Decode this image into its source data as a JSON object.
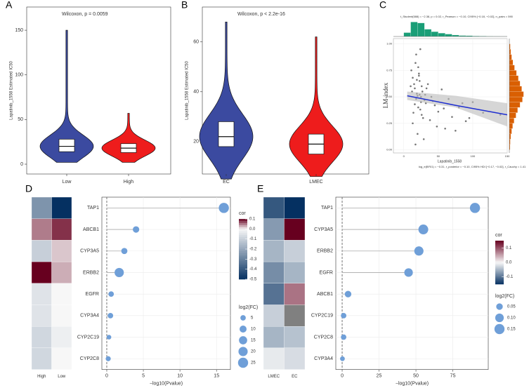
{
  "chart_data": [
    {
      "type": "violin",
      "panel": "A",
      "title": "Wilcoxon, p = 0.0059",
      "ylabel": "Lapatinib_1558 Estimated IC50",
      "categories": [
        "Low",
        "High"
      ],
      "colors": [
        "#3b4aa0",
        "#ee1c1c"
      ],
      "min": [
        2,
        2
      ],
      "q1": [
        14,
        13
      ],
      "median": [
        20,
        18
      ],
      "q3": [
        28,
        23
      ],
      "max": [
        150,
        57
      ],
      "ylim": [
        -11,
        176
      ],
      "yticks": [
        0,
        50,
        100,
        150
      ]
    },
    {
      "type": "violin",
      "panel": "B",
      "title": "Wilcoxon, p < 2.2e-16",
      "ylabel": "Lapatinib_1558 Estimated IC50",
      "categories": [
        "EC",
        "LMEC"
      ],
      "colors": [
        "#3b4aa0",
        "#ee1c1c"
      ],
      "min": [
        5,
        6
      ],
      "q1": [
        18,
        15
      ],
      "median": [
        22,
        19
      ],
      "q3": [
        28,
        23
      ],
      "max": [
        68,
        62
      ],
      "ylim": [
        7,
        74
      ],
      "yticks": [
        20,
        40,
        60
      ]
    },
    {
      "type": "scatter",
      "panel": "C",
      "annotation_top": "t_Student(588) = −2.38, p = 0.02, r_Pearson = −0.10, CI95% [−0.18, −0.02], n_pairs = 590",
      "annotation_bottom": "log_e(BF01) = −0.31, r_posterior = −0.10, CI95% HDI [−0.17, −0.02], r_Cauchy = 1.41",
      "xlabel": "Lapatinib_1558",
      "ylabel": "LM-index",
      "x": [
        12,
        15,
        18,
        20,
        22,
        25,
        14,
        16,
        19,
        21,
        23,
        26,
        28,
        30,
        11,
        13,
        17,
        24,
        27,
        32,
        35,
        38,
        40,
        45,
        50,
        55,
        60,
        65,
        70,
        80,
        90,
        100,
        115,
        140,
        10,
        18,
        20,
        22,
        25,
        16,
        19,
        23,
        29,
        33,
        42,
        48,
        13,
        21,
        26,
        31,
        17,
        24,
        58,
        75,
        85,
        95
      ],
      "y": [
        0.55,
        0.62,
        0.48,
        0.51,
        0.7,
        0.45,
        0.35,
        0.58,
        0.66,
        0.4,
        0.52,
        0.6,
        0.3,
        0.47,
        0.75,
        0.25,
        0.82,
        0.38,
        0.55,
        0.44,
        0.62,
        0.28,
        0.5,
        0.42,
        0.36,
        0.57,
        0.2,
        0.48,
        0.31,
        0.4,
        0.27,
        0.45,
        0.35,
        0.33,
        0.6,
        0.9,
        0.15,
        0.72,
        0.5,
        0.43,
        0.53,
        0.65,
        0.1,
        0.58,
        0.46,
        0.22,
        0.68,
        0.78,
        0.33,
        0.52,
        0.05,
        0.95,
        0.39,
        0.18,
        0.44,
        0.3
      ],
      "point_color": "#555555",
      "fit_x": [
        5,
        75,
        150
      ],
      "fit_y": [
        0.51,
        0.42,
        0.33
      ],
      "fit_ci_low": [
        0.47,
        0.4,
        0.22
      ],
      "fit_ci_high": [
        0.55,
        0.51,
        0.44
      ],
      "fit_color": "#1f2fd0",
      "xlim": [
        -15,
        150
      ],
      "xticks": [
        0,
        50,
        100,
        150
      ],
      "ylim": [
        -0.03,
        1.05
      ],
      "yticks": [
        {
          "value": 0,
          "label": "0.00"
        },
        {
          "value": 0.25,
          "label": "0.25"
        },
        {
          "value": 0.5,
          "label": "0.50"
        },
        {
          "value": 0.75,
          "label": "0.75"
        },
        {
          "value": 1,
          "label": "1.00"
        }
      ],
      "hist_x_bins": [
        0,
        10,
        20,
        30,
        40,
        50,
        60,
        70,
        80,
        90,
        100,
        110,
        120,
        130,
        140,
        150
      ],
      "hist_x_counts": [
        40,
        150,
        140,
        75,
        50,
        35,
        25,
        15,
        10,
        8,
        5,
        4,
        3,
        2,
        1
      ],
      "hist_x_lim": [
        0,
        160
      ],
      "hist_x_color": "#1a9e77",
      "hist_y_bins": [
        0,
        0.05,
        0.1,
        0.15,
        0.2,
        0.25,
        0.3,
        0.35,
        0.4,
        0.45,
        0.5,
        0.55,
        0.6,
        0.65,
        0.7,
        0.75,
        0.8,
        0.85,
        0.9,
        0.95,
        1
      ],
      "hist_y_counts": [
        3,
        4,
        6,
        10,
        14,
        20,
        28,
        35,
        45,
        55,
        60,
        52,
        45,
        38,
        30,
        22,
        15,
        10,
        6,
        4
      ],
      "hist_y_lim": [
        0,
        65
      ],
      "hist_y_color": "#d95f02"
    },
    {
      "type": "heatmap",
      "panel": "D",
      "categories": [
        "High",
        "Low"
      ],
      "values": [
        [
          -0.25,
          -0.5
        ],
        [
          0.05,
          0.08
        ],
        [
          -0.1,
          0.02
        ],
        [
          0.1,
          0.03
        ],
        [
          -0.05,
          0.0
        ],
        [
          -0.05,
          0.0
        ],
        [
          -0.08,
          -0.02
        ],
        [
          -0.08,
          0.0
        ]
      ],
      "clim": [
        -0.5,
        0.1
      ],
      "colors": [
        "#053061",
        "#f7f7f7",
        "#67001f"
      ]
    },
    {
      "type": "lollipop",
      "categories": [
        "TAP1",
        "ABCB1",
        "CYP3A5",
        "ERBB2",
        "EGFR",
        "CYP3A4",
        "CYP2C19",
        "CYP2C8"
      ],
      "values": [
        16,
        4,
        2.4,
        1.7,
        0.6,
        0.5,
        0.3,
        0.2
      ],
      "sizes": [
        25,
        8,
        7,
        20,
        5,
        5,
        3,
        4
      ],
      "color": "#6f9fd8",
      "xlabel": "−log10(Pvalue)",
      "xlim": [
        -0.67,
        16.9
      ],
      "xticks": [
        0,
        5,
        10,
        15
      ],
      "vline": 0,
      "color_title": "cor",
      "clim": [
        -0.5,
        0.1
      ],
      "colors": [
        "#053061",
        "#f7f7f7",
        "#67001f"
      ],
      "color_ticks": [
        0.1,
        {
          "value": 0,
          "label": "0.0"
        },
        -0.1,
        -0.2,
        -0.3,
        -0.4,
        -0.5
      ],
      "size_title": "log2(FC)",
      "size_ticks": [
        5,
        10,
        15,
        20,
        25
      ]
    },
    {
      "type": "heatmap",
      "panel": "E",
      "categories": [
        "LMEC",
        "EC"
      ],
      "values": [
        [
          -0.12,
          -0.15
        ],
        [
          -0.07,
          0.15
        ],
        [
          -0.05,
          -0.03
        ],
        [
          -0.08,
          -0.05
        ],
        [
          -0.1,
          0.08
        ],
        [
          -0.03,
          null
        ],
        [
          -0.05,
          -0.04
        ],
        [
          -0.01,
          -0.02
        ]
      ],
      "clim": [
        -0.15,
        0.15
      ],
      "colors": [
        "#053061",
        "#f7f7f7",
        "#67001f"
      ],
      "na_color": "#808080"
    },
    {
      "type": "lollipop",
      "categories": [
        "TAP1",
        "CYP3A5",
        "ERBB2",
        "EGFR",
        "ABCB1",
        "CYP2C19",
        "CYP2C8",
        "CYP3A4"
      ],
      "values": [
        90,
        55,
        52,
        45,
        4,
        1,
        1,
        0.2
      ],
      "sizes": [
        0.15,
        0.14,
        0.12,
        0.1,
        0.05,
        0.03,
        0.03,
        0.02
      ],
      "color": "#6f9fd8",
      "xlabel": "−log10(Pvalue)",
      "xlim": [
        -4.3,
        99
      ],
      "xticks": [
        0,
        25,
        50,
        75
      ],
      "vline": 0,
      "color_title": "cor",
      "clim": [
        -0.15,
        0.15
      ],
      "colors": [
        "#053061",
        "#f7f7f7",
        "#67001f"
      ],
      "color_ticks": [
        0.1,
        {
          "value": 0,
          "label": "0.0"
        },
        -0.1
      ],
      "size_title": "log2(FC)",
      "size_ticks": [
        0.05,
        {
          "value": 0.1,
          "label": "0.10"
        },
        0.15
      ]
    }
  ]
}
